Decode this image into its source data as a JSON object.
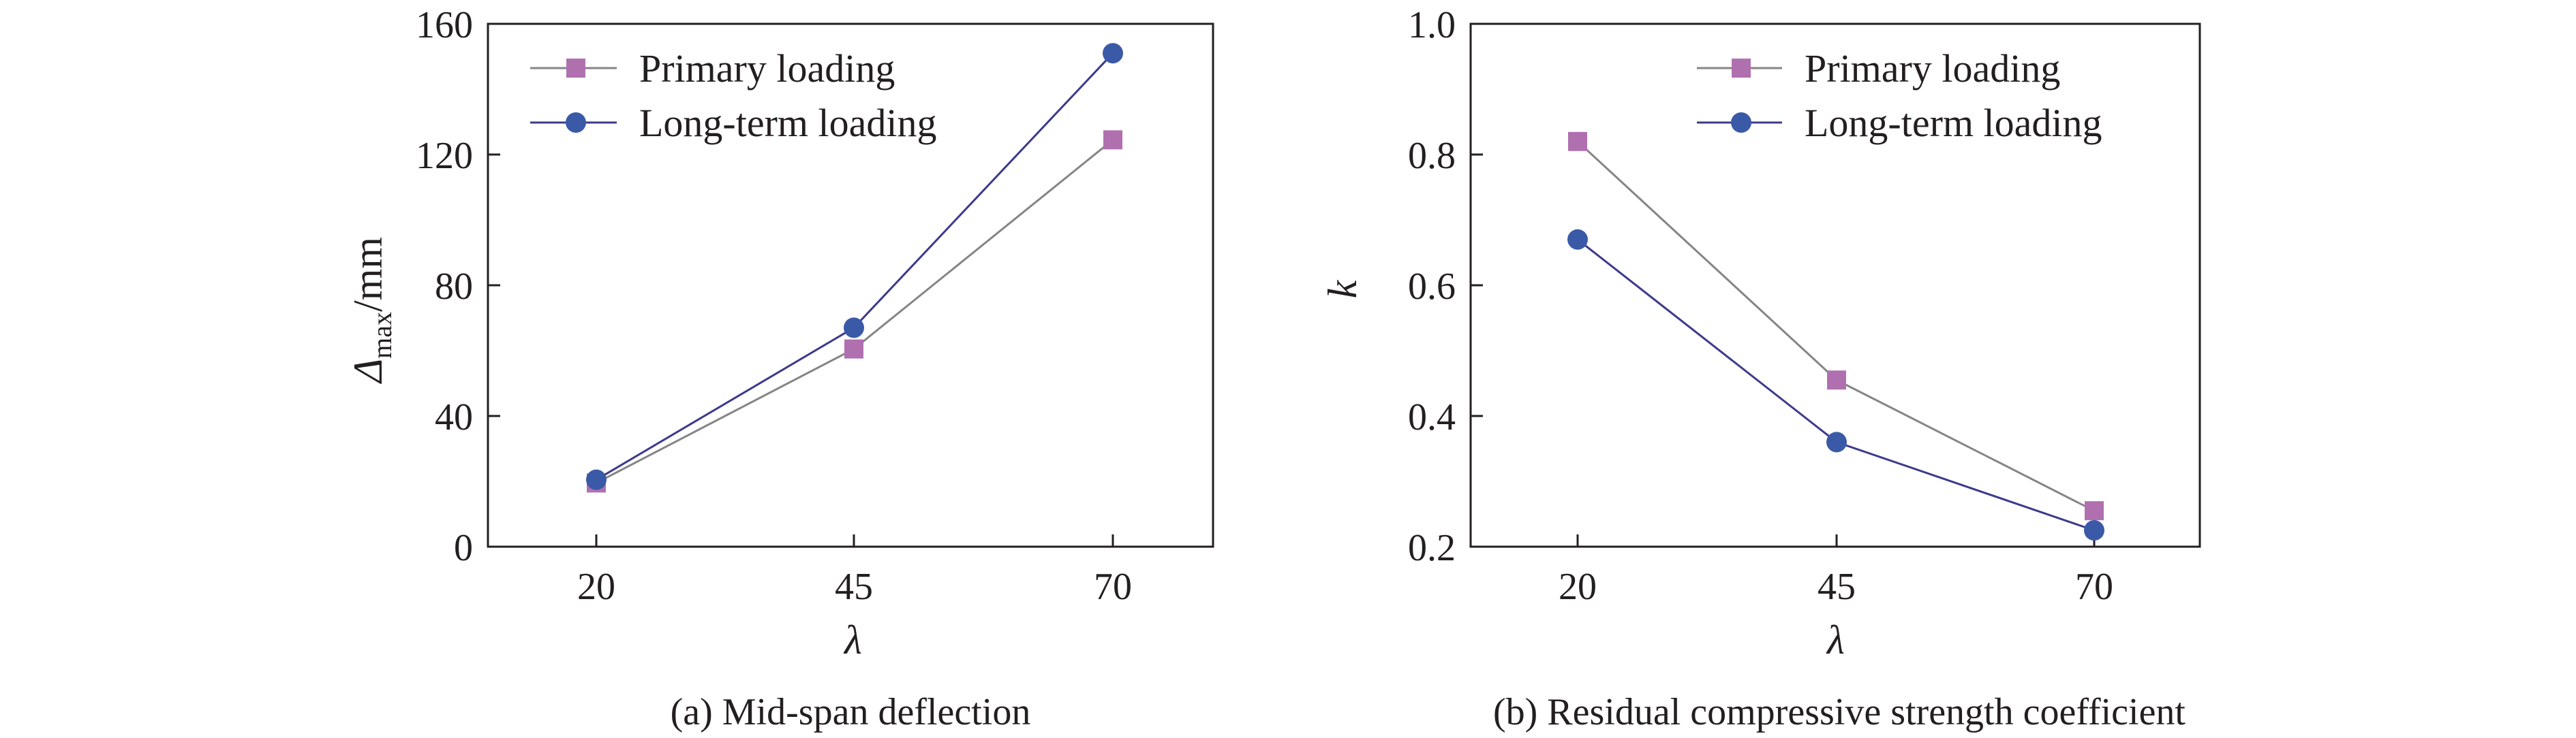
{
  "colors": {
    "primary_line": "#858585",
    "primary_marker": "#b070b0",
    "longterm_line": "#3c3a8c",
    "longterm_marker": "#3a5aa8",
    "axis": "#231f20"
  },
  "chart_data": [
    {
      "type": "line",
      "caption": "(a) Mid-span deflection",
      "xlabel": "λ",
      "ylabel_main": "Δ",
      "ylabel_sub": "max",
      "ylabel_unit": "/mm",
      "categories": [
        20,
        45,
        70
      ],
      "x_tick_labels": [
        "20",
        "45",
        "70"
      ],
      "ylim": [
        0,
        160
      ],
      "y_ticks": [
        0,
        40,
        80,
        120,
        160
      ],
      "y_tick_labels": [
        "0",
        "40",
        "80",
        "120",
        "160"
      ],
      "legend_position": "top-left",
      "grid": false,
      "series": [
        {
          "name": "Primary loading",
          "marker": "square",
          "values": [
            19.5,
            60.5,
            124.5
          ]
        },
        {
          "name": "Long-term loading",
          "marker": "circle",
          "values": [
            20.5,
            67,
            151
          ]
        }
      ]
    },
    {
      "type": "line",
      "caption": "(b) Residual compressive strength coefficient",
      "xlabel": "λ",
      "ylabel_main": "k",
      "ylabel_sub": "",
      "ylabel_unit": "",
      "categories": [
        20,
        45,
        70
      ],
      "x_tick_labels": [
        "20",
        "45",
        "70"
      ],
      "ylim": [
        0.2,
        1.0
      ],
      "y_ticks": [
        0.2,
        0.4,
        0.6,
        0.8,
        1.0
      ],
      "y_tick_labels": [
        "0.2",
        "0.4",
        "0.6",
        "0.8",
        "1.0"
      ],
      "legend_position": "top-right",
      "grid": false,
      "series": [
        {
          "name": "Primary loading",
          "marker": "square",
          "values": [
            0.82,
            0.455,
            0.255
          ]
        },
        {
          "name": "Long-term loading",
          "marker": "circle",
          "values": [
            0.67,
            0.36,
            0.225
          ]
        }
      ]
    }
  ]
}
